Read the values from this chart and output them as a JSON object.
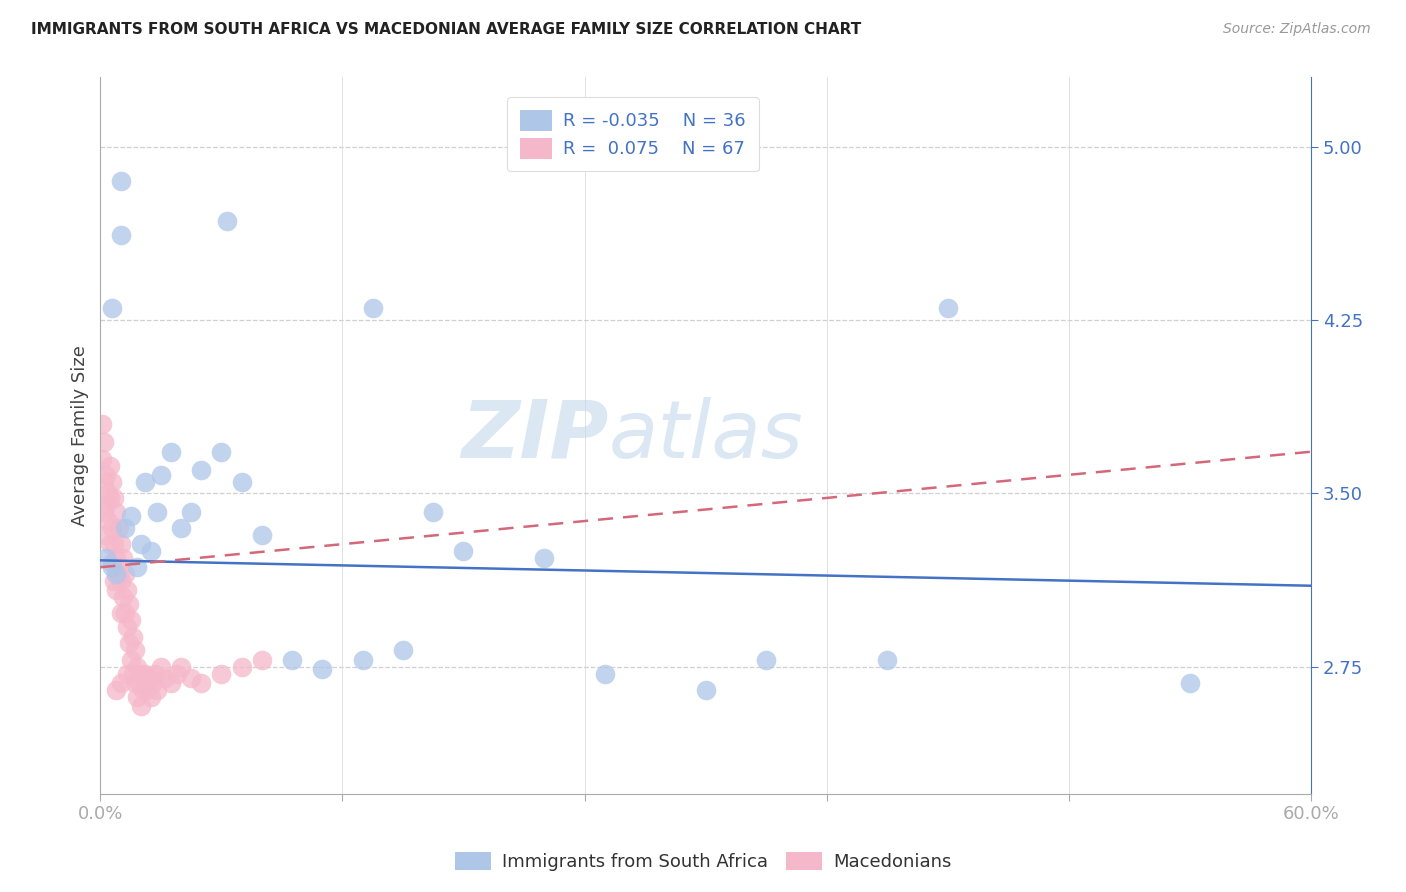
{
  "title": "IMMIGRANTS FROM SOUTH AFRICA VS MACEDONIAN AVERAGE FAMILY SIZE CORRELATION CHART",
  "source": "Source: ZipAtlas.com",
  "ylabel": "Average Family Size",
  "xlim": [
    0.0,
    0.6
  ],
  "ylim": [
    2.2,
    5.3
  ],
  "yticks": [
    2.75,
    3.5,
    4.25,
    5.0
  ],
  "ytick_color": "#4472c4",
  "background_color": "#ffffff",
  "grid_color": "#d0d0d0",
  "watermark_zip": "ZIP",
  "watermark_atlas": "atlas",
  "blue_R": "-0.035",
  "blue_N": "36",
  "pink_R": "0.075",
  "pink_N": "67",
  "blue_color": "#aec6e8",
  "pink_color": "#f5b8ca",
  "blue_line_color": "#4472c4",
  "pink_line_color": "#d4687a",
  "blue_line_y0": 3.21,
  "blue_line_y1": 3.1,
  "pink_line_y0": 3.18,
  "pink_line_y1": 3.68,
  "blue_x": [
    0.003,
    0.006,
    0.008,
    0.01,
    0.012,
    0.015,
    0.018,
    0.02,
    0.022,
    0.025,
    0.028,
    0.03,
    0.035,
    0.04,
    0.045,
    0.05,
    0.06,
    0.07,
    0.08,
    0.095,
    0.11,
    0.13,
    0.15,
    0.165,
    0.18,
    0.22,
    0.25,
    0.3,
    0.33,
    0.39,
    0.54,
    0.006,
    0.01,
    0.063,
    0.135,
    0.42
  ],
  "blue_y": [
    3.22,
    3.18,
    3.15,
    4.62,
    3.35,
    3.4,
    3.18,
    3.28,
    3.55,
    3.25,
    3.42,
    3.58,
    3.68,
    3.35,
    3.42,
    3.6,
    3.68,
    3.55,
    3.32,
    2.78,
    2.74,
    2.78,
    2.82,
    3.42,
    3.25,
    3.22,
    2.72,
    2.65,
    2.78,
    2.78,
    2.68,
    4.3,
    4.85,
    4.68,
    4.3,
    4.3
  ],
  "pink_x": [
    0.001,
    0.001,
    0.002,
    0.002,
    0.002,
    0.003,
    0.003,
    0.003,
    0.004,
    0.004,
    0.005,
    0.005,
    0.005,
    0.006,
    0.006,
    0.006,
    0.007,
    0.007,
    0.007,
    0.008,
    0.008,
    0.008,
    0.009,
    0.009,
    0.01,
    0.01,
    0.01,
    0.011,
    0.011,
    0.012,
    0.012,
    0.013,
    0.013,
    0.014,
    0.014,
    0.015,
    0.015,
    0.016,
    0.016,
    0.017,
    0.017,
    0.018,
    0.018,
    0.019,
    0.02,
    0.02,
    0.021,
    0.022,
    0.023,
    0.024,
    0.025,
    0.026,
    0.027,
    0.028,
    0.03,
    0.032,
    0.035,
    0.038,
    0.04,
    0.045,
    0.05,
    0.06,
    0.07,
    0.08,
    0.01,
    0.013,
    0.008
  ],
  "pink_y": [
    3.8,
    3.65,
    3.72,
    3.55,
    3.42,
    3.58,
    3.45,
    3.32,
    3.5,
    3.38,
    3.62,
    3.48,
    3.28,
    3.55,
    3.35,
    3.2,
    3.48,
    3.28,
    3.12,
    3.42,
    3.22,
    3.08,
    3.35,
    3.15,
    3.28,
    3.12,
    2.98,
    3.22,
    3.05,
    3.15,
    2.98,
    3.08,
    2.92,
    3.02,
    2.85,
    2.95,
    2.78,
    2.88,
    2.72,
    2.82,
    2.68,
    2.75,
    2.62,
    2.68,
    2.72,
    2.58,
    2.65,
    2.72,
    2.65,
    2.7,
    2.62,
    2.68,
    2.72,
    2.65,
    2.75,
    2.7,
    2.68,
    2.72,
    2.75,
    2.7,
    2.68,
    2.72,
    2.75,
    2.78,
    2.68,
    2.72,
    2.65
  ]
}
